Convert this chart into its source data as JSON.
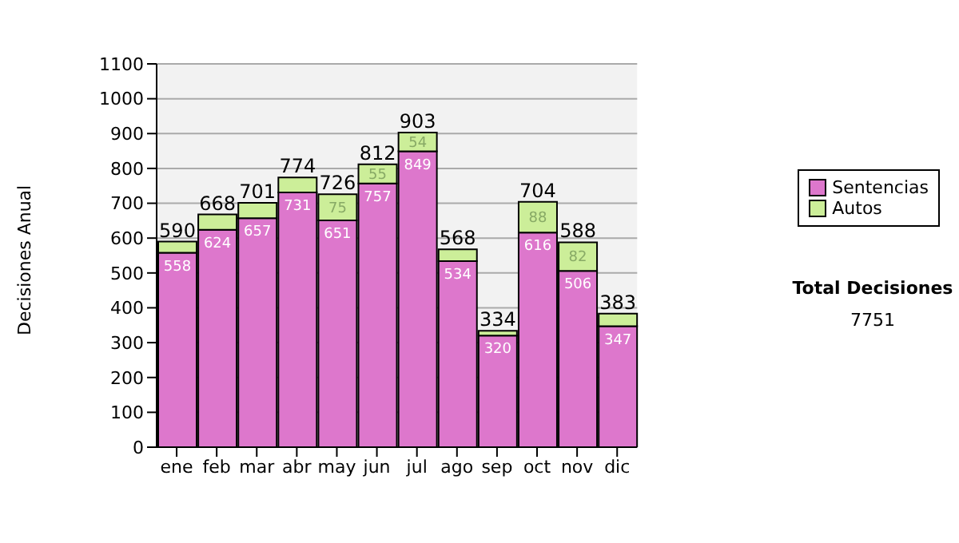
{
  "chart_data": {
    "type": "bar",
    "stacked": true,
    "ylabel": "Decisiones Anual",
    "categories": [
      "ene",
      "feb",
      "mar",
      "abr",
      "may",
      "jun",
      "jul",
      "ago",
      "sep",
      "oct",
      "nov",
      "dic"
    ],
    "series": [
      {
        "name": "Sentencias",
        "color": "#dd77cc",
        "values": [
          558,
          624,
          657,
          731,
          651,
          757,
          849,
          534,
          320,
          616,
          506,
          347
        ],
        "value_labels": [
          "558",
          "624",
          "657",
          "731",
          "651",
          "757",
          "849",
          "534",
          "320",
          "616",
          "506",
          "347"
        ]
      },
      {
        "name": "Autos",
        "color": "#ccee99",
        "values": [
          32,
          44,
          44,
          43,
          75,
          55,
          54,
          34,
          14,
          88,
          82,
          36
        ],
        "value_labels": [
          null,
          null,
          null,
          null,
          "75",
          "55",
          "54",
          null,
          null,
          "88",
          "82",
          null
        ]
      }
    ],
    "totals": [
      "590",
      "668",
      "701",
      "774",
      "726",
      "812",
      "903",
      "568",
      "334",
      "704",
      "588",
      "383"
    ],
    "ylim": [
      0,
      1100
    ],
    "yticks": [
      0,
      100,
      200,
      300,
      400,
      500,
      600,
      700,
      800,
      900,
      1000,
      1100
    ],
    "grid": "y",
    "legend": "right",
    "annotations": [
      "Total Decisiones",
      "7751"
    ]
  }
}
